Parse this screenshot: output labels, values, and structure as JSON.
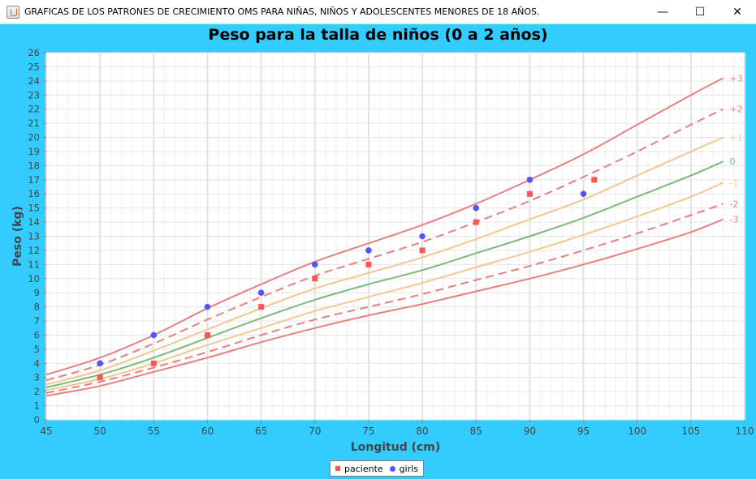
{
  "window": {
    "title": "GRAFICAS DE LOS PATRONES DE CRECIMIENTO OMS PARA NIÑAS, NIÑOS Y ADOLESCENTES MENORES DE 18 AÑOS.",
    "controls": {
      "minimize": "—",
      "maximize": "☐",
      "close": "✕"
    }
  },
  "chart_data": {
    "type": "line",
    "title": "Peso para la talla de niños (0 a 2 años)",
    "xlabel": "Longitud (cm)",
    "ylabel": "Peso (kg)",
    "xlim": [
      45,
      110
    ],
    "ylim": [
      0,
      26
    ],
    "x_ticks": [
      45,
      50,
      55,
      60,
      65,
      70,
      75,
      80,
      85,
      90,
      95,
      100,
      105,
      110
    ],
    "y_ticks": [
      0,
      1,
      2,
      3,
      4,
      5,
      6,
      7,
      8,
      9,
      10,
      11,
      12,
      13,
      14,
      15,
      16,
      17,
      18,
      19,
      20,
      21,
      22,
      23,
      24,
      25,
      26
    ],
    "grid": true,
    "legend": "bottom",
    "reference_curves": [
      {
        "label": "+3",
        "color": "#e88080",
        "style": "solid",
        "x": [
          45,
          50,
          55,
          60,
          65,
          70,
          75,
          80,
          85,
          90,
          95,
          100,
          105,
          108
        ],
        "y": [
          3.2,
          4.4,
          6.0,
          7.9,
          9.6,
          11.2,
          12.5,
          13.8,
          15.3,
          17.0,
          18.8,
          20.9,
          23.0,
          24.2
        ]
      },
      {
        "label": "+2",
        "color": "#e88080",
        "style": "dashed",
        "x": [
          45,
          50,
          55,
          60,
          65,
          70,
          75,
          80,
          85,
          90,
          95,
          100,
          105,
          108
        ],
        "y": [
          2.8,
          3.9,
          5.4,
          7.1,
          8.7,
          10.2,
          11.4,
          12.6,
          14.0,
          15.5,
          17.2,
          19.0,
          20.9,
          22.0
        ]
      },
      {
        "label": "+1",
        "color": "#f0c890",
        "style": "solid",
        "x": [
          45,
          50,
          55,
          60,
          65,
          70,
          75,
          80,
          85,
          90,
          95,
          100,
          105,
          108
        ],
        "y": [
          2.5,
          3.5,
          4.9,
          6.4,
          7.9,
          9.3,
          10.4,
          11.5,
          12.8,
          14.2,
          15.6,
          17.3,
          19.0,
          20.0
        ]
      },
      {
        "label": "0",
        "color": "#7aba7a",
        "style": "solid",
        "x": [
          45,
          50,
          55,
          60,
          65,
          70,
          75,
          80,
          85,
          90,
          95,
          100,
          105,
          108
        ],
        "y": [
          2.3,
          3.2,
          4.4,
          5.8,
          7.2,
          8.5,
          9.6,
          10.6,
          11.8,
          13.0,
          14.3,
          15.8,
          17.3,
          18.3
        ]
      },
      {
        "label": "-1",
        "color": "#f0c890",
        "style": "solid",
        "x": [
          45,
          50,
          55,
          60,
          65,
          70,
          75,
          80,
          85,
          90,
          95,
          100,
          105,
          108
        ],
        "y": [
          2.1,
          2.9,
          4.0,
          5.3,
          6.5,
          7.7,
          8.7,
          9.7,
          10.8,
          11.9,
          13.1,
          14.4,
          15.8,
          16.8
        ]
      },
      {
        "label": "-2",
        "color": "#e88080",
        "style": "dashed",
        "x": [
          45,
          50,
          55,
          60,
          65,
          70,
          75,
          80,
          85,
          90,
          95,
          100,
          105,
          108
        ],
        "y": [
          1.9,
          2.7,
          3.7,
          4.8,
          6.0,
          7.1,
          8.0,
          8.9,
          9.9,
          10.9,
          12.0,
          13.2,
          14.5,
          15.3
        ]
      },
      {
        "label": "-3",
        "color": "#e88080",
        "style": "solid",
        "x": [
          45,
          50,
          55,
          60,
          65,
          70,
          75,
          80,
          85,
          90,
          95,
          100,
          105,
          108
        ],
        "y": [
          1.7,
          2.4,
          3.4,
          4.4,
          5.5,
          6.5,
          7.4,
          8.2,
          9.1,
          10.0,
          11.0,
          12.1,
          13.3,
          14.2
        ]
      }
    ],
    "series": [
      {
        "name": "paciente",
        "marker": "square",
        "color": "#ff5555",
        "x": [
          50,
          55,
          60,
          65,
          70,
          75,
          80,
          85,
          90,
          96
        ],
        "y": [
          3,
          4,
          6,
          8,
          10,
          11,
          12,
          14,
          16,
          17
        ]
      },
      {
        "name": "girls",
        "marker": "circle",
        "color": "#5555ff",
        "x": [
          50,
          55,
          60,
          65,
          70,
          75,
          80,
          85,
          90,
          95
        ],
        "y": [
          4,
          6,
          8,
          9,
          11,
          12,
          13,
          15,
          17,
          16
        ]
      }
    ]
  }
}
